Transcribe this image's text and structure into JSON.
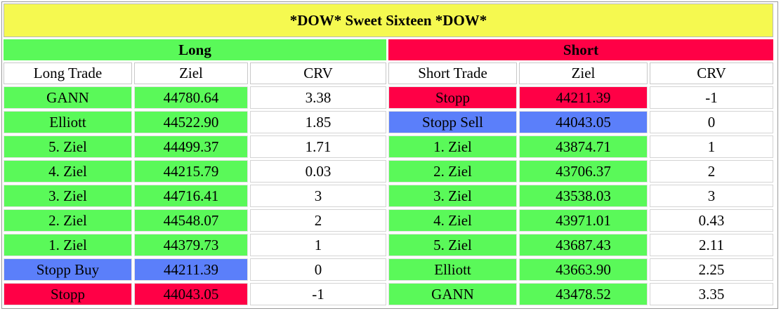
{
  "title": "*DOW* Sweet Sixteen *DOW*",
  "colors": {
    "title_bg": "#f5f950",
    "green": "#5af959",
    "red": "#ff0046",
    "blue": "#5b7ffa",
    "white": "#ffffff"
  },
  "long": {
    "label": "Long",
    "headers": [
      "Long Trade",
      "Ziel",
      "CRV"
    ],
    "rows": [
      {
        "name": "GANN",
        "ziel": "44780.64",
        "crv": "3.38",
        "color": "green"
      },
      {
        "name": "Elliott",
        "ziel": "44522.90",
        "crv": "1.85",
        "color": "green"
      },
      {
        "name": "5. Ziel",
        "ziel": "44499.37",
        "crv": "1.71",
        "color": "green"
      },
      {
        "name": "4. Ziel",
        "ziel": "44215.79",
        "crv": "0.03",
        "color": "green"
      },
      {
        "name": "3. Ziel",
        "ziel": "44716.41",
        "crv": "3",
        "color": "green"
      },
      {
        "name": "2. Ziel",
        "ziel": "44548.07",
        "crv": "2",
        "color": "green"
      },
      {
        "name": "1. Ziel",
        "ziel": "44379.73",
        "crv": "1",
        "color": "green"
      },
      {
        "name": "Stopp Buy",
        "ziel": "44211.39",
        "crv": "0",
        "color": "blue"
      },
      {
        "name": "Stopp",
        "ziel": "44043.05",
        "crv": "-1",
        "color": "red"
      }
    ]
  },
  "short": {
    "label": "Short",
    "headers": [
      "Short Trade",
      "Ziel",
      "CRV"
    ],
    "rows": [
      {
        "name": "Stopp",
        "ziel": "44211.39",
        "crv": "-1",
        "color": "red"
      },
      {
        "name": "Stopp Sell",
        "ziel": "44043.05",
        "crv": "0",
        "color": "blue"
      },
      {
        "name": "1. Ziel",
        "ziel": "43874.71",
        "crv": "1",
        "color": "green"
      },
      {
        "name": "2. Ziel",
        "ziel": "43706.37",
        "crv": "2",
        "color": "green"
      },
      {
        "name": "3. Ziel",
        "ziel": "43538.03",
        "crv": "3",
        "color": "green"
      },
      {
        "name": "4. Ziel",
        "ziel": "43971.01",
        "crv": "0.43",
        "color": "green"
      },
      {
        "name": "5. Ziel",
        "ziel": "43687.43",
        "crv": "2.11",
        "color": "green"
      },
      {
        "name": "Elliott",
        "ziel": "43663.90",
        "crv": "2.25",
        "color": "green"
      },
      {
        "name": "GANN",
        "ziel": "43478.52",
        "crv": "3.35",
        "color": "green"
      }
    ]
  }
}
